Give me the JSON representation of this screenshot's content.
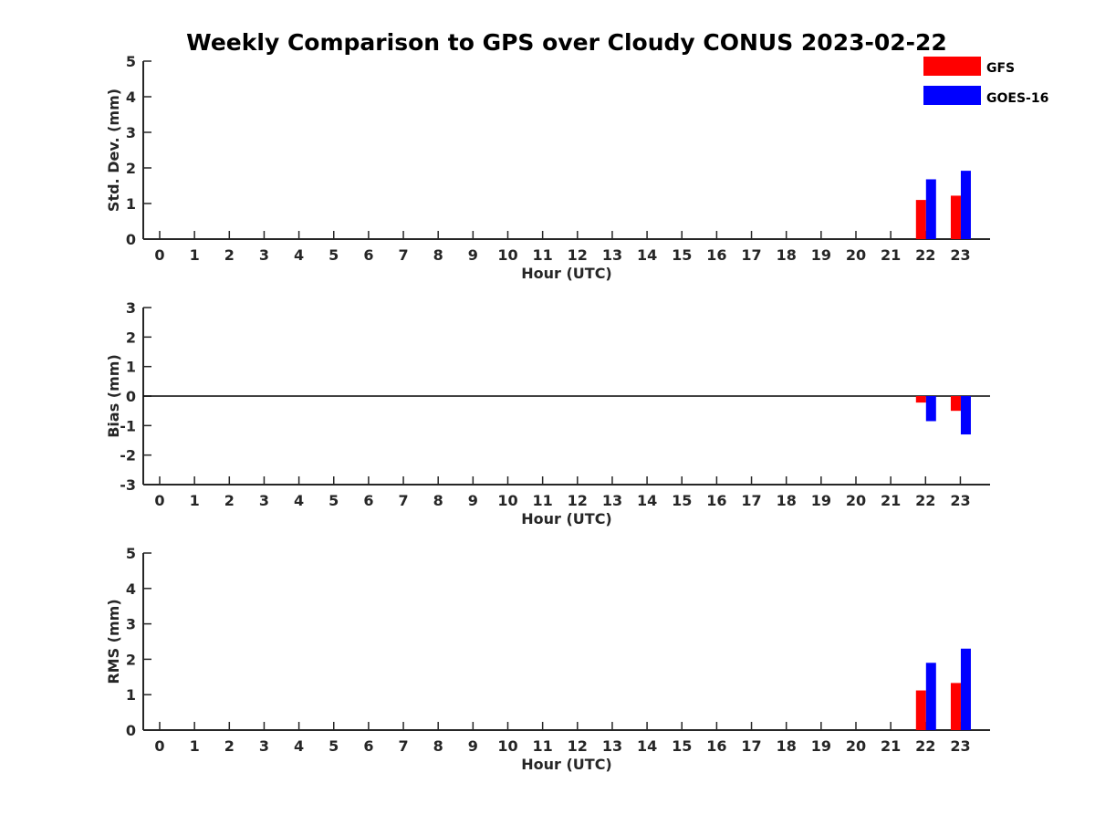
{
  "title": "Weekly Comparison to GPS over Cloudy CONUS 2023-02-22",
  "colors": {
    "GFS": "#ff0000",
    "GOES-16": "#0000ff",
    "axis": "#262626"
  },
  "legend": {
    "placement": "top-right",
    "entries": [
      "GFS",
      "GOES-16"
    ]
  },
  "chart_data": [
    {
      "type": "bar",
      "categories": [
        "0",
        "1",
        "2",
        "3",
        "4",
        "5",
        "6",
        "7",
        "8",
        "9",
        "10",
        "11",
        "12",
        "13",
        "14",
        "15",
        "16",
        "17",
        "18",
        "19",
        "20",
        "21",
        "22",
        "23"
      ],
      "xlabel": "Hour (UTC)",
      "ylabel": "Std. Dev. (mm)",
      "ylim": [
        0,
        5
      ],
      "yticks": [
        0,
        1,
        2,
        3,
        4,
        5
      ],
      "zero_line": false,
      "series": [
        {
          "name": "GFS",
          "values": [
            null,
            null,
            null,
            null,
            null,
            null,
            null,
            null,
            null,
            null,
            null,
            null,
            null,
            null,
            null,
            null,
            null,
            null,
            null,
            null,
            null,
            null,
            1.1,
            1.22
          ]
        },
        {
          "name": "GOES-16",
          "values": [
            null,
            null,
            null,
            null,
            null,
            null,
            null,
            null,
            null,
            null,
            null,
            null,
            null,
            null,
            null,
            null,
            null,
            null,
            null,
            null,
            null,
            null,
            1.68,
            1.92
          ]
        }
      ]
    },
    {
      "type": "bar",
      "categories": [
        "0",
        "1",
        "2",
        "3",
        "4",
        "5",
        "6",
        "7",
        "8",
        "9",
        "10",
        "11",
        "12",
        "13",
        "14",
        "15",
        "16",
        "17",
        "18",
        "19",
        "20",
        "21",
        "22",
        "23"
      ],
      "xlabel": "Hour (UTC)",
      "ylabel": "Bias (mm)",
      "ylim": [
        -3,
        3
      ],
      "yticks": [
        -3,
        -2,
        -1,
        0,
        1,
        2,
        3
      ],
      "zero_line": true,
      "series": [
        {
          "name": "GFS",
          "values": [
            null,
            null,
            null,
            null,
            null,
            null,
            null,
            null,
            null,
            null,
            null,
            null,
            null,
            null,
            null,
            null,
            null,
            null,
            null,
            null,
            null,
            null,
            -0.22,
            -0.5
          ]
        },
        {
          "name": "GOES-16",
          "values": [
            null,
            null,
            null,
            null,
            null,
            null,
            null,
            null,
            null,
            null,
            null,
            null,
            null,
            null,
            null,
            null,
            null,
            null,
            null,
            null,
            null,
            null,
            -0.85,
            -1.3
          ]
        }
      ]
    },
    {
      "type": "bar",
      "categories": [
        "0",
        "1",
        "2",
        "3",
        "4",
        "5",
        "6",
        "7",
        "8",
        "9",
        "10",
        "11",
        "12",
        "13",
        "14",
        "15",
        "16",
        "17",
        "18",
        "19",
        "20",
        "21",
        "22",
        "23"
      ],
      "xlabel": "Hour (UTC)",
      "ylabel": "RMS (mm)",
      "ylim": [
        0,
        5
      ],
      "yticks": [
        0,
        1,
        2,
        3,
        4,
        5
      ],
      "zero_line": false,
      "series": [
        {
          "name": "GFS",
          "values": [
            null,
            null,
            null,
            null,
            null,
            null,
            null,
            null,
            null,
            null,
            null,
            null,
            null,
            null,
            null,
            null,
            null,
            null,
            null,
            null,
            null,
            null,
            1.12,
            1.33
          ]
        },
        {
          "name": "GOES-16",
          "values": [
            null,
            null,
            null,
            null,
            null,
            null,
            null,
            null,
            null,
            null,
            null,
            null,
            null,
            null,
            null,
            null,
            null,
            null,
            null,
            null,
            null,
            null,
            1.9,
            2.3
          ]
        }
      ]
    }
  ]
}
